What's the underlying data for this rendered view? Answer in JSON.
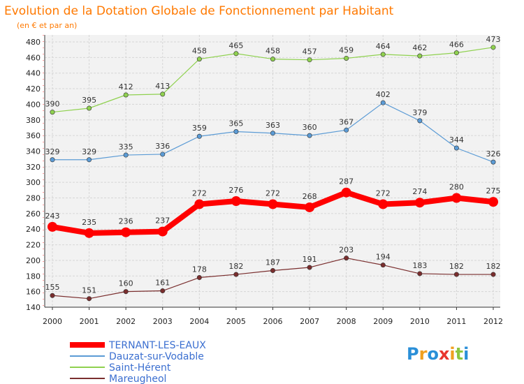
{
  "chart_data": {
    "type": "line",
    "title": "Evolution de la Dotation Globale de Fonctionnement par Habitant",
    "subtitle": "(en € et par an)",
    "xlabel": "",
    "ylabel": "",
    "ylim": [
      140,
      480
    ],
    "y_ticks": [
      140,
      160,
      180,
      200,
      220,
      240,
      260,
      280,
      300,
      320,
      340,
      360,
      380,
      400,
      420,
      440,
      460,
      480
    ],
    "categories": [
      "2000",
      "2001",
      "2002",
      "2003",
      "2004",
      "2005",
      "2006",
      "2007",
      "2008",
      "2009",
      "2010",
      "2011",
      "2012"
    ],
    "grid": true,
    "legend_position": "bottom-left",
    "series": [
      {
        "name": "TERNANT-LES-EAUX",
        "color": "#ff0000",
        "values": [
          243,
          235,
          236,
          237,
          272,
          276,
          272,
          268,
          287,
          272,
          274,
          280,
          275
        ]
      },
      {
        "name": "Dauzat-sur-Vodable",
        "color": "#5b9bd5",
        "values": [
          329,
          329,
          335,
          336,
          359,
          365,
          363,
          360,
          367,
          402,
          379,
          344,
          326
        ]
      },
      {
        "name": "Saint-Hérent",
        "color": "#8fd14f",
        "values": [
          390,
          395,
          412,
          413,
          458,
          465,
          458,
          457,
          459,
          464,
          462,
          466,
          473
        ]
      },
      {
        "name": "Mareugheol",
        "color": "#7a2e2e",
        "values": [
          155,
          151,
          160,
          161,
          178,
          182,
          187,
          191,
          203,
          194,
          183,
          182,
          182
        ]
      }
    ]
  },
  "logo": {
    "letters": [
      {
        "ch": "P",
        "color": "#2a8fd8"
      },
      {
        "ch": "r",
        "color": "#f0a020"
      },
      {
        "ch": "o",
        "color": "#2a8fd8"
      },
      {
        "ch": "x",
        "color": "#e8352e"
      },
      {
        "ch": "i",
        "color": "#f0a020"
      },
      {
        "ch": "t",
        "color": "#8cc63f"
      },
      {
        "ch": "i",
        "color": "#2a8fd8"
      }
    ]
  }
}
